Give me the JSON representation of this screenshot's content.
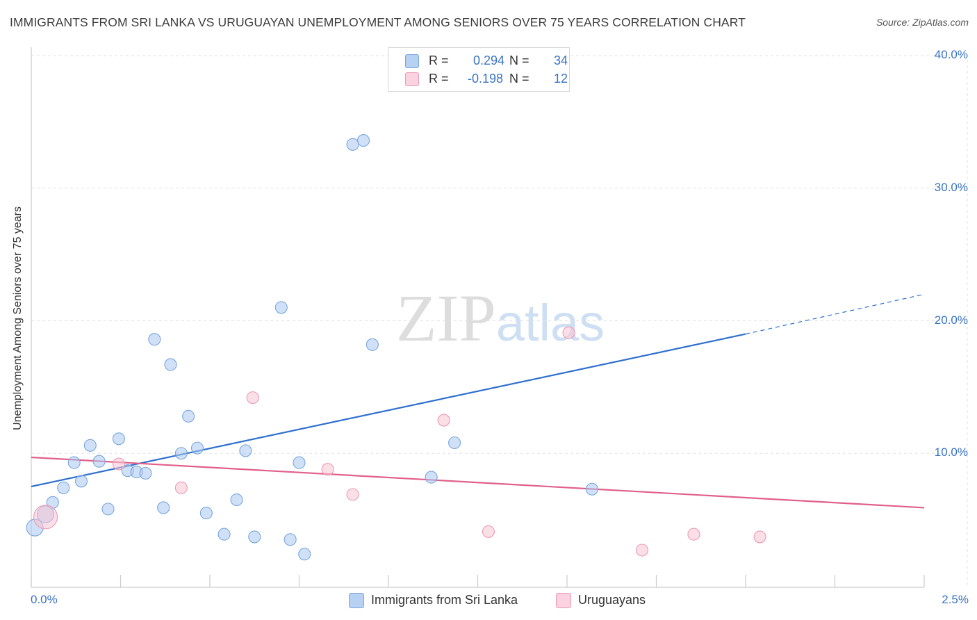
{
  "chart_data": {
    "type": "scatter",
    "title": "IMMIGRANTS FROM SRI LANKA VS URUGUAYAN UNEMPLOYMENT AMONG SENIORS OVER 75 YEARS CORRELATION CHART",
    "source": "Source: ZipAtlas.com",
    "watermark": "ZIPatlas",
    "ylabel": "Unemployment Among Seniors over 75 years",
    "xlim": [
      0.0,
      2.5
    ],
    "ylim": [
      0.0,
      40.0
    ],
    "x_tick_labels": [
      "0.0%",
      "2.5%"
    ],
    "y_ticks": [
      10,
      20,
      30,
      40
    ],
    "y_tick_labels": [
      "10.0%",
      "20.0%",
      "30.0%",
      "40.0%"
    ],
    "legend": [
      {
        "r_label": "R =",
        "r_value": "0.294",
        "n_label": "N =",
        "n_value": "34"
      },
      {
        "r_label": "R =",
        "r_value": "-0.198",
        "n_label": "N =",
        "n_value": "12"
      }
    ],
    "series": [
      {
        "name": "Immigrants from Sri Lanka",
        "color": "#a9c8f0",
        "stroke": "#7aa6de",
        "line_color": "#2e6fce",
        "trend": {
          "x0": 0.0,
          "y0": 7.5,
          "x1": 2.0,
          "y1": 19.0,
          "x_dash_end": 2.5,
          "y_dash_end": 22.0
        },
        "points": [
          {
            "x": 0.01,
            "y": 4.4,
            "size": "l"
          },
          {
            "x": 0.04,
            "y": 5.4,
            "size": "l"
          },
          {
            "x": 0.06,
            "y": 6.3
          },
          {
            "x": 0.09,
            "y": 7.4
          },
          {
            "x": 0.12,
            "y": 9.3
          },
          {
            "x": 0.14,
            "y": 7.9
          },
          {
            "x": 0.165,
            "y": 10.6
          },
          {
            "x": 0.19,
            "y": 9.4
          },
          {
            "x": 0.215,
            "y": 5.8
          },
          {
            "x": 0.245,
            "y": 11.1
          },
          {
            "x": 0.27,
            "y": 8.7
          },
          {
            "x": 0.295,
            "y": 8.6
          },
          {
            "x": 0.32,
            "y": 8.5
          },
          {
            "x": 0.345,
            "y": 18.6
          },
          {
            "x": 0.37,
            "y": 5.9
          },
          {
            "x": 0.39,
            "y": 16.7
          },
          {
            "x": 0.42,
            "y": 10.0
          },
          {
            "x": 0.44,
            "y": 12.8
          },
          {
            "x": 0.465,
            "y": 10.4
          },
          {
            "x": 0.49,
            "y": 5.5
          },
          {
            "x": 0.54,
            "y": 3.9
          },
          {
            "x": 0.575,
            "y": 6.5
          },
          {
            "x": 0.6,
            "y": 10.2
          },
          {
            "x": 0.625,
            "y": 3.7
          },
          {
            "x": 0.7,
            "y": 21.0
          },
          {
            "x": 0.725,
            "y": 3.5
          },
          {
            "x": 0.75,
            "y": 9.3
          },
          {
            "x": 0.765,
            "y": 2.4
          },
          {
            "x": 0.9,
            "y": 33.3
          },
          {
            "x": 0.93,
            "y": 33.6
          },
          {
            "x": 0.955,
            "y": 18.2
          },
          {
            "x": 1.12,
            "y": 8.2
          },
          {
            "x": 1.185,
            "y": 10.8
          },
          {
            "x": 1.57,
            "y": 7.3
          }
        ]
      },
      {
        "name": "Uruguayans",
        "color": "#f8c4d4",
        "stroke": "#ec9ab4",
        "line_color": "#e0608a",
        "trend": {
          "x0": 0.0,
          "y0": 9.7,
          "x1": 2.5,
          "y1": 5.9
        },
        "points": [
          {
            "x": 0.04,
            "y": 5.2,
            "size": "xl"
          },
          {
            "x": 0.245,
            "y": 9.2
          },
          {
            "x": 0.42,
            "y": 7.4
          },
          {
            "x": 0.62,
            "y": 14.2
          },
          {
            "x": 0.83,
            "y": 8.8
          },
          {
            "x": 0.9,
            "y": 6.9
          },
          {
            "x": 1.155,
            "y": 12.5
          },
          {
            "x": 1.28,
            "y": 4.1
          },
          {
            "x": 1.505,
            "y": 19.1
          },
          {
            "x": 1.71,
            "y": 2.7
          },
          {
            "x": 1.855,
            "y": 3.9
          },
          {
            "x": 2.04,
            "y": 3.7
          }
        ]
      }
    ]
  }
}
